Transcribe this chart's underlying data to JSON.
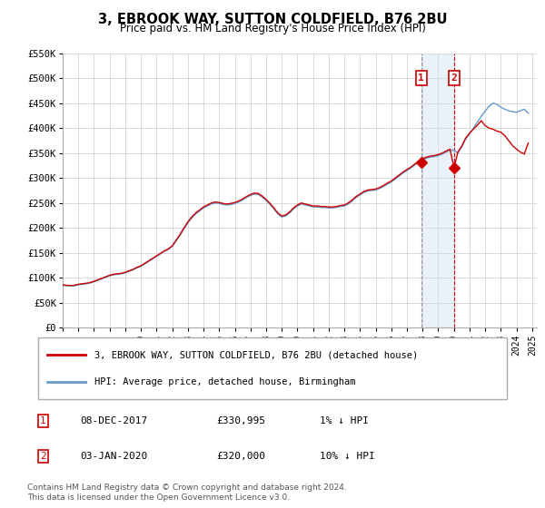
{
  "title": "3, EBROOK WAY, SUTTON COLDFIELD, B76 2BU",
  "subtitle": "Price paid vs. HM Land Registry's House Price Index (HPI)",
  "legend_line1": "3, EBROOK WAY, SUTTON COLDFIELD, B76 2BU (detached house)",
  "legend_line2": "HPI: Average price, detached house, Birmingham",
  "footnote": "Contains HM Land Registry data © Crown copyright and database right 2024.\nThis data is licensed under the Open Government Licence v3.0.",
  "red_color": "#cc0000",
  "blue_color": "#6699cc",
  "shade_color": "#ccddf0",
  "ylim": [
    0,
    550000
  ],
  "yticks": [
    0,
    50000,
    100000,
    150000,
    200000,
    250000,
    300000,
    350000,
    400000,
    450000,
    500000,
    550000
  ],
  "ytick_labels": [
    "£0",
    "£50K",
    "£100K",
    "£150K",
    "£200K",
    "£250K",
    "£300K",
    "£350K",
    "£400K",
    "£450K",
    "£500K",
    "£550K"
  ],
  "sale1_year": 2017.92,
  "sale1_price": 330995,
  "sale1_date": "08-DEC-2017",
  "sale1_hpi": "1% ↓ HPI",
  "sale2_year": 2020.01,
  "sale2_price": 320000,
  "sale2_date": "03-JAN-2020",
  "sale2_hpi": "10% ↓ HPI",
  "hpi_data": [
    [
      1995.0,
      85000
    ],
    [
      1995.25,
      84000
    ],
    [
      1995.5,
      83500
    ],
    [
      1995.75,
      84000
    ],
    [
      1996.0,
      86000
    ],
    [
      1996.25,
      87000
    ],
    [
      1996.5,
      88000
    ],
    [
      1996.75,
      89500
    ],
    [
      1997.0,
      92000
    ],
    [
      1997.25,
      95000
    ],
    [
      1997.5,
      98000
    ],
    [
      1997.75,
      101000
    ],
    [
      1998.0,
      104000
    ],
    [
      1998.25,
      106000
    ],
    [
      1998.5,
      107000
    ],
    [
      1998.75,
      108000
    ],
    [
      1999.0,
      110000
    ],
    [
      1999.25,
      113000
    ],
    [
      1999.5,
      116000
    ],
    [
      1999.75,
      120000
    ],
    [
      2000.0,
      123000
    ],
    [
      2000.25,
      128000
    ],
    [
      2000.5,
      133000
    ],
    [
      2000.75,
      138000
    ],
    [
      2001.0,
      143000
    ],
    [
      2001.25,
      148000
    ],
    [
      2001.5,
      153000
    ],
    [
      2001.75,
      157000
    ],
    [
      2002.0,
      163000
    ],
    [
      2002.25,
      174000
    ],
    [
      2002.5,
      185000
    ],
    [
      2002.75,
      198000
    ],
    [
      2003.0,
      210000
    ],
    [
      2003.25,
      220000
    ],
    [
      2003.5,
      228000
    ],
    [
      2003.75,
      234000
    ],
    [
      2004.0,
      240000
    ],
    [
      2004.25,
      244000
    ],
    [
      2004.5,
      248000
    ],
    [
      2004.75,
      250000
    ],
    [
      2005.0,
      249000
    ],
    [
      2005.25,
      247000
    ],
    [
      2005.5,
      246000
    ],
    [
      2005.75,
      247000
    ],
    [
      2006.0,
      249000
    ],
    [
      2006.25,
      252000
    ],
    [
      2006.5,
      256000
    ],
    [
      2006.75,
      261000
    ],
    [
      2007.0,
      265000
    ],
    [
      2007.25,
      268000
    ],
    [
      2007.5,
      267000
    ],
    [
      2007.75,
      262000
    ],
    [
      2008.0,
      255000
    ],
    [
      2008.25,
      247000
    ],
    [
      2008.5,
      238000
    ],
    [
      2008.75,
      228000
    ],
    [
      2009.0,
      222000
    ],
    [
      2009.25,
      224000
    ],
    [
      2009.5,
      230000
    ],
    [
      2009.75,
      238000
    ],
    [
      2010.0,
      244000
    ],
    [
      2010.25,
      248000
    ],
    [
      2010.5,
      246000
    ],
    [
      2010.75,
      244000
    ],
    [
      2011.0,
      242000
    ],
    [
      2011.25,
      242000
    ],
    [
      2011.5,
      241000
    ],
    [
      2011.75,
      241000
    ],
    [
      2012.0,
      240000
    ],
    [
      2012.25,
      240000
    ],
    [
      2012.5,
      241000
    ],
    [
      2012.75,
      243000
    ],
    [
      2013.0,
      244000
    ],
    [
      2013.25,
      248000
    ],
    [
      2013.5,
      254000
    ],
    [
      2013.75,
      261000
    ],
    [
      2014.0,
      266000
    ],
    [
      2014.25,
      271000
    ],
    [
      2014.5,
      274000
    ],
    [
      2014.75,
      275000
    ],
    [
      2015.0,
      276000
    ],
    [
      2015.25,
      279000
    ],
    [
      2015.5,
      283000
    ],
    [
      2015.75,
      288000
    ],
    [
      2016.0,
      292000
    ],
    [
      2016.25,
      298000
    ],
    [
      2016.5,
      304000
    ],
    [
      2016.75,
      310000
    ],
    [
      2017.0,
      315000
    ],
    [
      2017.25,
      320000
    ],
    [
      2017.5,
      326000
    ],
    [
      2017.75,
      332000
    ],
    [
      2018.0,
      337000
    ],
    [
      2018.25,
      340000
    ],
    [
      2018.5,
      342000
    ],
    [
      2018.75,
      343000
    ],
    [
      2019.0,
      345000
    ],
    [
      2019.25,
      348000
    ],
    [
      2019.5,
      352000
    ],
    [
      2019.75,
      356000
    ],
    [
      2020.0,
      356000
    ],
    [
      2020.25,
      350000
    ],
    [
      2020.5,
      362000
    ],
    [
      2020.75,
      378000
    ],
    [
      2021.0,
      388000
    ],
    [
      2021.25,
      400000
    ],
    [
      2021.5,
      412000
    ],
    [
      2021.75,
      424000
    ],
    [
      2022.0,
      434000
    ],
    [
      2022.25,
      444000
    ],
    [
      2022.5,
      450000
    ],
    [
      2022.75,
      448000
    ],
    [
      2023.0,
      442000
    ],
    [
      2023.25,
      438000
    ],
    [
      2023.5,
      435000
    ],
    [
      2023.75,
      433000
    ],
    [
      2024.0,
      432000
    ],
    [
      2024.25,
      435000
    ],
    [
      2024.5,
      438000
    ],
    [
      2024.75,
      430000
    ]
  ],
  "red_data": [
    [
      1995.0,
      86000
    ],
    [
      1995.25,
      85000
    ],
    [
      1995.5,
      84500
    ],
    [
      1995.75,
      85000
    ],
    [
      1996.0,
      87000
    ],
    [
      1996.25,
      88000
    ],
    [
      1996.5,
      89000
    ],
    [
      1996.75,
      90500
    ],
    [
      1997.0,
      93000
    ],
    [
      1997.25,
      96000
    ],
    [
      1997.5,
      99000
    ],
    [
      1997.75,
      102000
    ],
    [
      1998.0,
      105000
    ],
    [
      1998.25,
      107000
    ],
    [
      1998.5,
      108000
    ],
    [
      1998.75,
      109000
    ],
    [
      1999.0,
      111000
    ],
    [
      1999.25,
      114000
    ],
    [
      1999.5,
      117000
    ],
    [
      1999.75,
      121000
    ],
    [
      2000.0,
      124000
    ],
    [
      2000.25,
      129000
    ],
    [
      2000.5,
      134000
    ],
    [
      2000.75,
      139000
    ],
    [
      2001.0,
      144000
    ],
    [
      2001.25,
      149000
    ],
    [
      2001.5,
      154000
    ],
    [
      2001.75,
      158000
    ],
    [
      2002.0,
      164000
    ],
    [
      2002.25,
      175000
    ],
    [
      2002.5,
      187000
    ],
    [
      2002.75,
      200000
    ],
    [
      2003.0,
      212000
    ],
    [
      2003.25,
      222000
    ],
    [
      2003.5,
      230000
    ],
    [
      2003.75,
      236000
    ],
    [
      2004.0,
      242000
    ],
    [
      2004.25,
      246000
    ],
    [
      2004.5,
      250000
    ],
    [
      2004.75,
      252000
    ],
    [
      2005.0,
      251000
    ],
    [
      2005.25,
      249000
    ],
    [
      2005.5,
      248000
    ],
    [
      2005.75,
      249000
    ],
    [
      2006.0,
      251000
    ],
    [
      2006.25,
      254000
    ],
    [
      2006.5,
      258000
    ],
    [
      2006.75,
      263000
    ],
    [
      2007.0,
      267000
    ],
    [
      2007.25,
      270000
    ],
    [
      2007.5,
      269000
    ],
    [
      2007.75,
      264000
    ],
    [
      2008.0,
      257000
    ],
    [
      2008.25,
      249000
    ],
    [
      2008.5,
      240000
    ],
    [
      2008.75,
      230000
    ],
    [
      2009.0,
      224000
    ],
    [
      2009.25,
      226000
    ],
    [
      2009.5,
      232000
    ],
    [
      2009.75,
      240000
    ],
    [
      2010.0,
      246000
    ],
    [
      2010.25,
      250000
    ],
    [
      2010.5,
      248000
    ],
    [
      2010.75,
      246000
    ],
    [
      2011.0,
      244000
    ],
    [
      2011.25,
      244000
    ],
    [
      2011.5,
      243000
    ],
    [
      2011.75,
      243000
    ],
    [
      2012.0,
      242000
    ],
    [
      2012.25,
      242000
    ],
    [
      2012.5,
      243000
    ],
    [
      2012.75,
      245000
    ],
    [
      2013.0,
      246000
    ],
    [
      2013.25,
      250000
    ],
    [
      2013.5,
      256000
    ],
    [
      2013.75,
      263000
    ],
    [
      2014.0,
      268000
    ],
    [
      2014.25,
      273000
    ],
    [
      2014.5,
      276000
    ],
    [
      2014.75,
      277000
    ],
    [
      2015.0,
      278000
    ],
    [
      2015.25,
      281000
    ],
    [
      2015.5,
      285000
    ],
    [
      2015.75,
      290000
    ],
    [
      2016.0,
      294000
    ],
    [
      2016.25,
      300000
    ],
    [
      2016.5,
      306000
    ],
    [
      2016.75,
      312000
    ],
    [
      2017.0,
      317000
    ],
    [
      2017.25,
      322000
    ],
    [
      2017.5,
      328000
    ],
    [
      2017.75,
      334000
    ],
    [
      2017.92,
      330995
    ],
    [
      2018.0,
      339000
    ],
    [
      2018.25,
      342000
    ],
    [
      2018.5,
      344000
    ],
    [
      2018.75,
      345000
    ],
    [
      2019.0,
      347000
    ],
    [
      2019.25,
      350000
    ],
    [
      2019.5,
      354000
    ],
    [
      2019.75,
      358000
    ],
    [
      2020.01,
      320000
    ],
    [
      2020.25,
      352000
    ],
    [
      2020.5,
      364000
    ],
    [
      2020.75,
      380000
    ],
    [
      2021.0,
      390000
    ],
    [
      2021.25,
      398000
    ],
    [
      2021.5,
      406000
    ],
    [
      2021.75,
      415000
    ],
    [
      2022.0,
      405000
    ],
    [
      2022.25,
      400000
    ],
    [
      2022.5,
      398000
    ],
    [
      2022.75,
      394000
    ],
    [
      2023.0,
      392000
    ],
    [
      2023.25,
      385000
    ],
    [
      2023.5,
      375000
    ],
    [
      2023.75,
      365000
    ],
    [
      2024.0,
      358000
    ],
    [
      2024.25,
      352000
    ],
    [
      2024.5,
      348000
    ],
    [
      2024.75,
      370000
    ]
  ]
}
